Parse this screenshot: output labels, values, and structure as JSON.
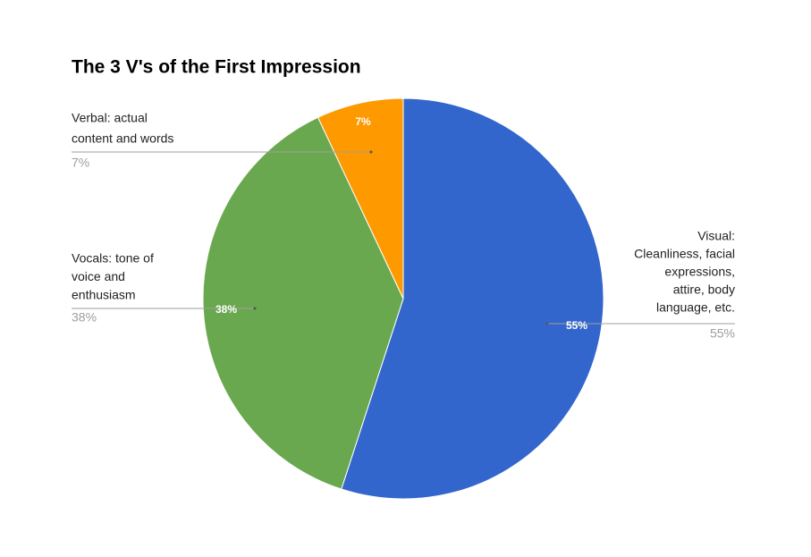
{
  "chart_data": {
    "type": "pie",
    "title": "The 3 V's of the First Impression",
    "categories": [
      [
        "Visual:",
        "Cleanliness, facial",
        "expressions,",
        "attire, body",
        "language, etc."
      ],
      [
        "Vocals: tone of",
        "voice and",
        "enthusiasm"
      ],
      [
        "Verbal: actual",
        "content and words"
      ]
    ],
    "values": [
      55,
      38,
      7
    ],
    "value_labels": [
      "55%",
      "38%",
      "7%"
    ],
    "colors": [
      "#3366cc",
      "#6aa84f",
      "#ff9900"
    ]
  }
}
